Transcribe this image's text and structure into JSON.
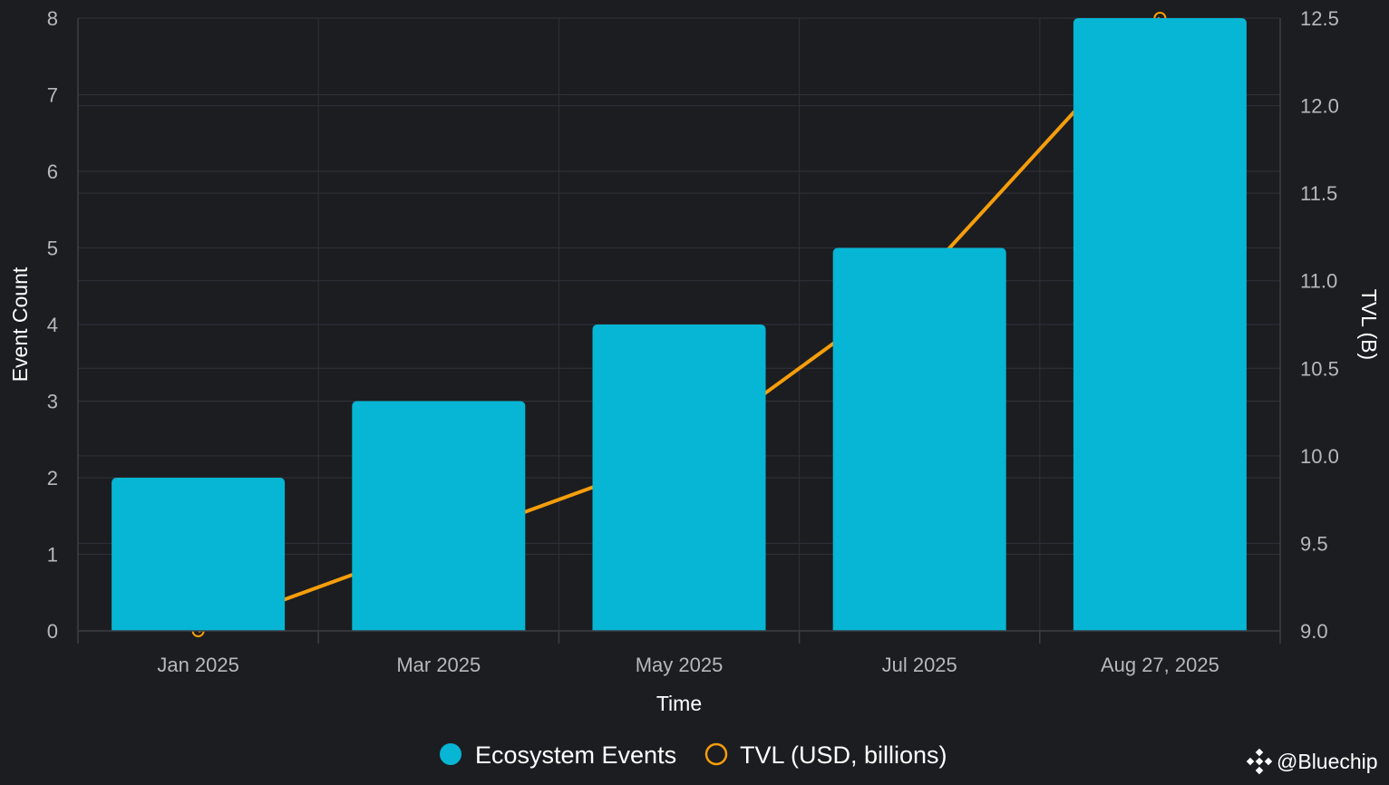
{
  "chart_data": {
    "type": "bar",
    "categories": [
      "Jan 2025",
      "Mar 2025",
      "May 2025",
      "Jul 2025",
      "Aug 27, 2025"
    ],
    "xlabel": "Time",
    "ylabel": "Event Count",
    "y2label": "TVL (B)",
    "ylim": [
      0,
      8
    ],
    "y2lim": [
      9.0,
      12.5
    ],
    "yticks": [
      0,
      1,
      2,
      3,
      4,
      5,
      6,
      7,
      8
    ],
    "y2ticks": [
      "9.0",
      "9.5",
      "10.0",
      "10.5",
      "11.0",
      "11.5",
      "12.0",
      "12.5"
    ],
    "grid": true,
    "legend_position": "bottom",
    "series": [
      {
        "name": "Ecosystem Events",
        "type": "bar",
        "axis": "left",
        "color": "#06b6d4",
        "values": [
          2,
          3,
          4,
          5,
          8
        ]
      },
      {
        "name": "TVL (USD, billions)",
        "type": "line",
        "axis": "right",
        "color": "#f59e0b",
        "values": [
          9.0,
          9.5,
          10.0,
          11.0,
          12.5
        ]
      }
    ]
  },
  "watermark": {
    "text": "@Bluechip",
    "icon": "binance-diamond-icon"
  }
}
